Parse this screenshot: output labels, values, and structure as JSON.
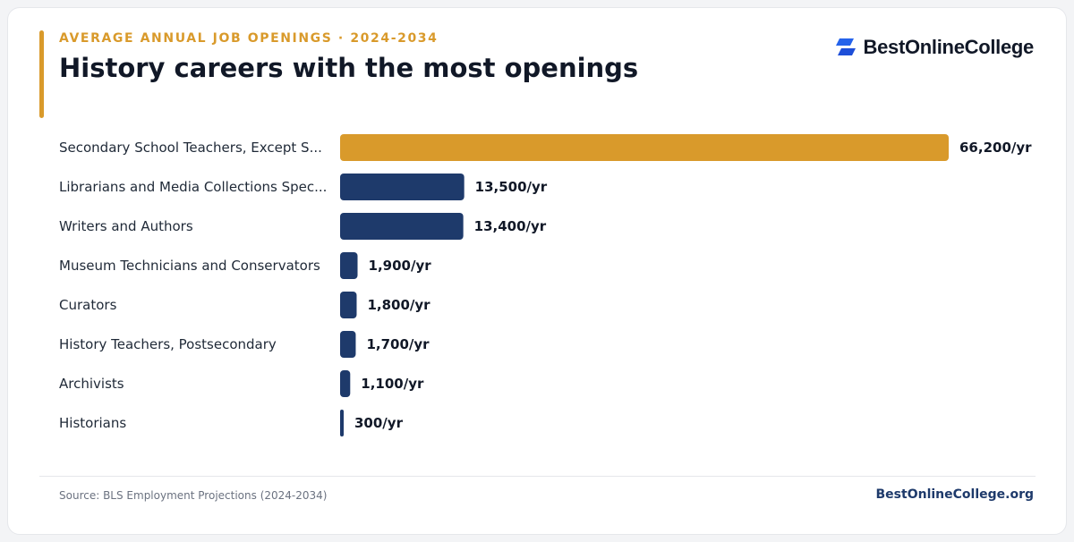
{
  "header": {
    "eyebrow": "AVERAGE ANNUAL JOB OPENINGS · 2024-2034",
    "title": "History careers with the most openings",
    "logo_text": "BestOnlineCollege"
  },
  "footer": {
    "source": "Source: BLS Employment Projections (2024-2034)",
    "site": "BestOnlineCollege.org"
  },
  "colors": {
    "highlight": "#d99a2b",
    "bar": "#1e3a6b",
    "logo_mark": "#2563eb"
  },
  "icons": {
    "logo": "bestonlinecollege-logo-icon"
  },
  "chart_data": {
    "type": "bar",
    "orientation": "horizontal",
    "categories": [
      "Secondary School Teachers, Except S...",
      "Librarians and Media Collections Spec...",
      "Writers and Authors",
      "Museum Technicians and Conservators",
      "Curators",
      "History Teachers, Postsecondary",
      "Archivists",
      "Historians"
    ],
    "values": [
      66200,
      13500,
      13400,
      1900,
      1800,
      1700,
      1100,
      300
    ],
    "value_labels": [
      "66,200/yr",
      "13,500/yr",
      "13,400/yr",
      "1,900/yr",
      "1,800/yr",
      "1,700/yr",
      "1,100/yr",
      "300/yr"
    ],
    "highlight_index": 0,
    "xlim": [
      0,
      66200
    ],
    "grid": false,
    "legend": "none"
  }
}
